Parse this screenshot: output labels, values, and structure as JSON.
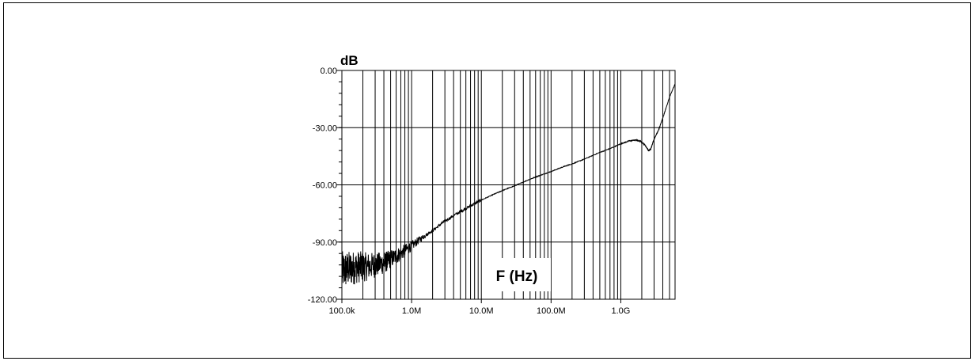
{
  "chart_data": {
    "type": "line",
    "ylabel": "dB",
    "xlabel": "F (Hz)",
    "xscale": "log",
    "xlim": [
      100000,
      6000000000
    ],
    "ylim": [
      -120,
      0
    ],
    "x_ticks": [
      {
        "value": 100000,
        "label": "100.0k"
      },
      {
        "value": 1000000,
        "label": "1.0M"
      },
      {
        "value": 10000000,
        "label": "10.0M"
      },
      {
        "value": 100000000,
        "label": "100.0M"
      },
      {
        "value": 1000000000,
        "label": "1.0G"
      }
    ],
    "y_ticks": [
      {
        "value": 0,
        "label": "0.00"
      },
      {
        "value": -30,
        "label": "-30.00"
      },
      {
        "value": -60,
        "label": "-60.00"
      },
      {
        "value": -90,
        "label": "-90.00"
      },
      {
        "value": -120,
        "label": "-120.00"
      }
    ],
    "grid": true,
    "legend": "none",
    "line_color": "#000000",
    "series": [
      {
        "x": [
          100000,
          130000,
          170000,
          220000,
          300000,
          400000,
          500000,
          700000,
          1000000,
          1500000,
          2000000,
          3000000,
          5000000,
          7000000,
          10000000,
          15000000,
          20000000,
          30000000,
          50000000,
          70000000,
          100000000,
          150000000,
          200000000,
          300000000,
          500000000,
          700000000,
          1000000000,
          1300000000,
          1600000000,
          1900000000,
          2200000000,
          2500000000,
          2700000000,
          3000000000,
          3500000000,
          4000000000,
          5000000000,
          6000000000
        ],
        "values": [
          -105,
          -104,
          -103,
          -103,
          -102,
          -101,
          -99,
          -96,
          -92,
          -87,
          -84,
          -79,
          -74,
          -71,
          -68,
          -65,
          -63,
          -60.5,
          -57,
          -55,
          -53,
          -50.5,
          -49,
          -46.5,
          -43,
          -41,
          -38.5,
          -37,
          -36.5,
          -37,
          -39,
          -42,
          -41,
          -36,
          -31,
          -25,
          -14,
          -7
        ]
      }
    ]
  }
}
